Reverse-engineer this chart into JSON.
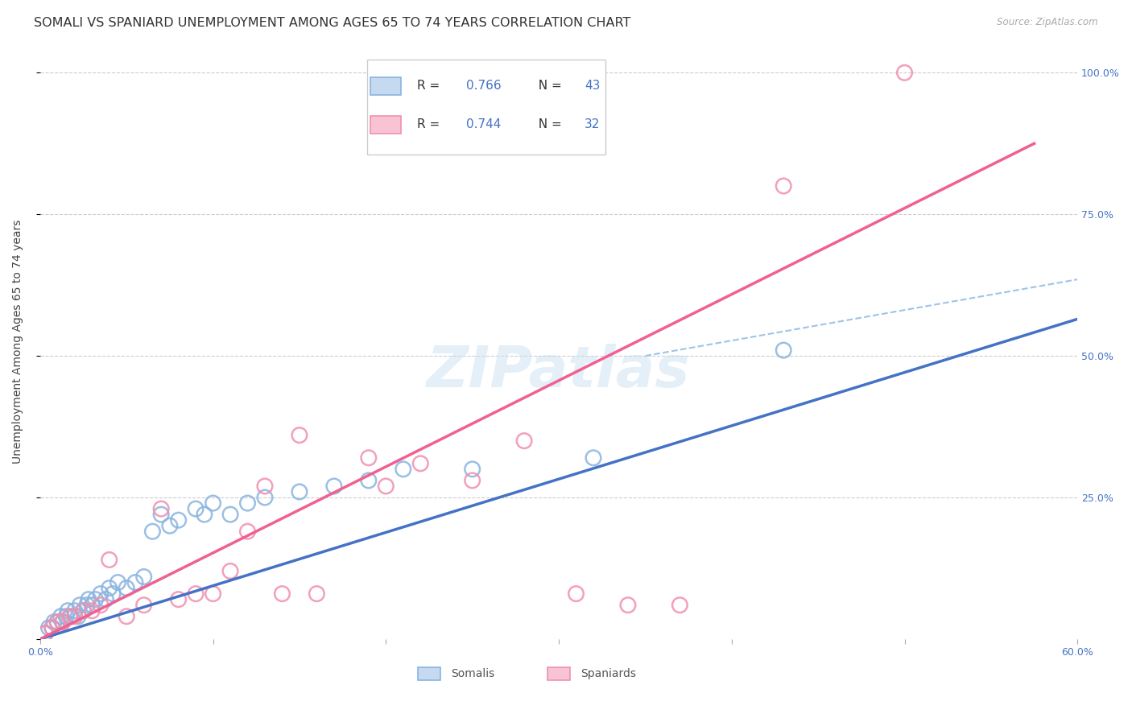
{
  "title": "SOMALI VS SPANIARD UNEMPLOYMENT AMONG AGES 65 TO 74 YEARS CORRELATION CHART",
  "source": "Source: ZipAtlas.com",
  "ylabel": "Unemployment Among Ages 65 to 74 years",
  "xlim": [
    0.0,
    0.6
  ],
  "ylim": [
    0.0,
    1.05
  ],
  "somali_R": 0.766,
  "somali_N": 43,
  "spaniard_R": 0.744,
  "spaniard_N": 32,
  "somali_color": "#8ab4e0",
  "spaniard_color": "#f090b0",
  "somali_line_color": "#4472c4",
  "spaniard_line_color": "#f06090",
  "dashed_line_color": "#9ec4e8",
  "watermark_text": "ZIPatlas",
  "somali_scatter_x": [
    0.003,
    0.005,
    0.007,
    0.008,
    0.01,
    0.012,
    0.013,
    0.015,
    0.016,
    0.018,
    0.02,
    0.022,
    0.023,
    0.025,
    0.027,
    0.028,
    0.03,
    0.032,
    0.035,
    0.038,
    0.04,
    0.042,
    0.045,
    0.05,
    0.055,
    0.06,
    0.065,
    0.07,
    0.075,
    0.08,
    0.09,
    0.095,
    0.1,
    0.11,
    0.12,
    0.13,
    0.15,
    0.17,
    0.19,
    0.21,
    0.25,
    0.32,
    0.43
  ],
  "somali_scatter_y": [
    0.01,
    0.02,
    0.02,
    0.03,
    0.03,
    0.04,
    0.03,
    0.04,
    0.05,
    0.04,
    0.05,
    0.04,
    0.06,
    0.05,
    0.06,
    0.07,
    0.06,
    0.07,
    0.08,
    0.07,
    0.09,
    0.08,
    0.1,
    0.09,
    0.1,
    0.11,
    0.19,
    0.22,
    0.2,
    0.21,
    0.23,
    0.22,
    0.24,
    0.22,
    0.24,
    0.25,
    0.26,
    0.27,
    0.28,
    0.3,
    0.3,
    0.32,
    0.51
  ],
  "spaniard_scatter_x": [
    0.003,
    0.007,
    0.01,
    0.013,
    0.017,
    0.02,
    0.025,
    0.03,
    0.035,
    0.04,
    0.05,
    0.06,
    0.07,
    0.08,
    0.09,
    0.1,
    0.11,
    0.12,
    0.13,
    0.14,
    0.15,
    0.16,
    0.19,
    0.2,
    0.22,
    0.25,
    0.28,
    0.31,
    0.34,
    0.37,
    0.43,
    0.5
  ],
  "spaniard_scatter_y": [
    0.01,
    0.02,
    0.03,
    0.03,
    0.04,
    0.04,
    0.05,
    0.05,
    0.06,
    0.14,
    0.04,
    0.06,
    0.23,
    0.07,
    0.08,
    0.08,
    0.12,
    0.19,
    0.27,
    0.08,
    0.36,
    0.08,
    0.32,
    0.27,
    0.31,
    0.28,
    0.35,
    0.08,
    0.06,
    0.06,
    0.8,
    1.0
  ],
  "somali_line_x": [
    0.0,
    0.6
  ],
  "somali_line_y": [
    0.0,
    0.565
  ],
  "spaniard_line_x": [
    0.0,
    0.575
  ],
  "spaniard_line_y": [
    0.0,
    0.875
  ],
  "dashed_line_x": [
    0.35,
    0.6
  ],
  "dashed_line_y": [
    0.5,
    0.635
  ],
  "background_color": "#ffffff",
  "grid_color": "#c8c8c8",
  "title_fontsize": 11.5,
  "axis_label_fontsize": 10,
  "tick_fontsize": 9,
  "watermark_fontsize": 52
}
